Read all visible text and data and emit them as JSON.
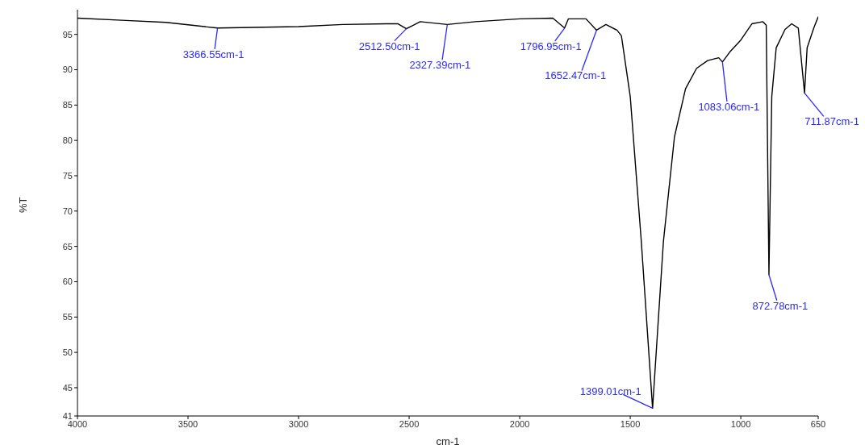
{
  "chart_data": {
    "type": "line",
    "xlabel": "cm-1",
    "ylabel": "%T",
    "x": [
      4000,
      3800,
      3600,
      3366.55,
      3000,
      2800,
      2600,
      2550,
      2512.5,
      2450,
      2327.39,
      2200,
      2000,
      1850,
      1796.95,
      1780,
      1700,
      1652.47,
      1610,
      1560,
      1540,
      1500,
      1450,
      1399.01,
      1350,
      1300,
      1250,
      1200,
      1150,
      1100,
      1083.06,
      1050,
      1000,
      950,
      900,
      885,
      872.78,
      860,
      840,
      800,
      770,
      740,
      711.87,
      700,
      670,
      650
    ],
    "series": [
      {
        "color": "#000000",
        "values": [
          97.3,
          97.0,
          96.7,
          95.9,
          96.1,
          96.4,
          96.5,
          96.5,
          95.8,
          96.8,
          96.4,
          96.8,
          97.2,
          97.3,
          95.9,
          97.2,
          97.2,
          95.6,
          96.4,
          95.6,
          94.8,
          86.2,
          65.7,
          42.1,
          65.7,
          80.5,
          87.3,
          90.2,
          91.3,
          91.7,
          91.1,
          92.5,
          94.2,
          96.5,
          96.8,
          96.3,
          61.0,
          86.2,
          93.1,
          95.7,
          96.5,
          95.9,
          86.7,
          93.1,
          95.9,
          97.5
        ]
      }
    ],
    "xlim": [
      4000,
      650
    ],
    "xticks": [
      4000,
      3500,
      3000,
      2500,
      2000,
      1500,
      1000,
      650
    ],
    "ylim": [
      41,
      98.5
    ],
    "yticks": [
      41,
      45,
      50,
      55,
      60,
      65,
      70,
      75,
      80,
      85,
      90,
      95
    ],
    "grid": false,
    "legend": false,
    "marker": "none",
    "line_style": "solid",
    "annotations": [
      {
        "text": "3366.55cm-1",
        "x": 3366.55,
        "y": 95.9
      },
      {
        "text": "2512.50cm-1",
        "x": 2512.5,
        "y": 95.8
      },
      {
        "text": "2327.39cm-1",
        "x": 2327.39,
        "y": 96.4
      },
      {
        "text": "1796.95cm-1",
        "x": 1796.95,
        "y": 95.9
      },
      {
        "text": "1652.47cm-1",
        "x": 1652.47,
        "y": 95.6
      },
      {
        "text": "1399.01cm-1",
        "x": 1399.01,
        "y": 42.1
      },
      {
        "text": "1083.06cm-1",
        "x": 1083.06,
        "y": 91.1
      },
      {
        "text": "872.78cm-1",
        "x": 872.78,
        "y": 61.0
      },
      {
        "text": "711.87cm-1",
        "x": 711.87,
        "y": 86.7
      }
    ]
  }
}
